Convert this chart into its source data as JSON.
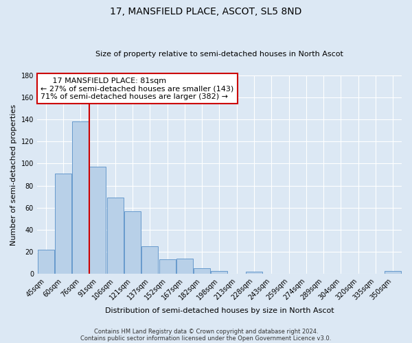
{
  "title": "17, MANSFIELD PLACE, ASCOT, SL5 8ND",
  "subtitle": "Size of property relative to semi-detached houses in North Ascot",
  "xlabel": "Distribution of semi-detached houses by size in North Ascot",
  "ylabel": "Number of semi-detached properties",
  "bar_labels": [
    "45sqm",
    "60sqm",
    "76sqm",
    "91sqm",
    "106sqm",
    "121sqm",
    "137sqm",
    "152sqm",
    "167sqm",
    "182sqm",
    "198sqm",
    "213sqm",
    "228sqm",
    "243sqm",
    "259sqm",
    "274sqm",
    "289sqm",
    "304sqm",
    "320sqm",
    "335sqm",
    "350sqm"
  ],
  "bar_values": [
    22,
    91,
    138,
    97,
    69,
    57,
    25,
    13,
    14,
    5,
    3,
    0,
    2,
    0,
    0,
    0,
    0,
    0,
    0,
    0,
    3
  ],
  "bar_color": "#b8d0e8",
  "bar_edge_color": "#6699cc",
  "ylim": [
    0,
    180
  ],
  "yticks": [
    0,
    20,
    40,
    60,
    80,
    100,
    120,
    140,
    160,
    180
  ],
  "property_line_color": "#cc0000",
  "annotation_title": "17 MANSFIELD PLACE: 81sqm",
  "annotation_line1": "← 27% of semi-detached houses are smaller (143)",
  "annotation_line2": "71% of semi-detached houses are larger (382) →",
  "annotation_box_color": "#cc0000",
  "footer_line1": "Contains HM Land Registry data © Crown copyright and database right 2024.",
  "footer_line2": "Contains public sector information licensed under the Open Government Licence v3.0.",
  "background_color": "#dce8f4",
  "plot_background": "#dce8f4",
  "title_fontsize": 10,
  "subtitle_fontsize": 8,
  "ylabel_fontsize": 8,
  "xlabel_fontsize": 8,
  "tick_fontsize": 7,
  "annotation_fontsize": 8,
  "footer_fontsize": 6
}
